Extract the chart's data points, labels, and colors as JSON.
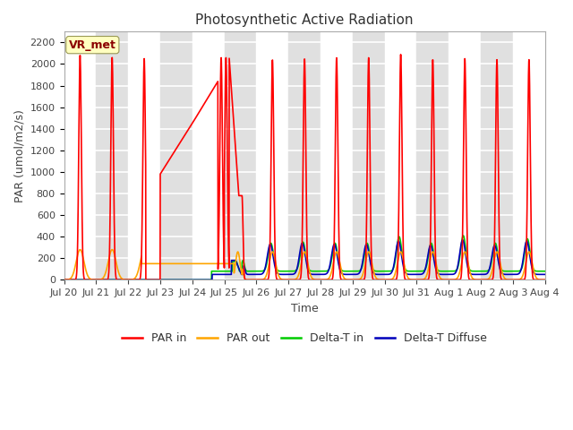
{
  "title": "Photosynthetic Active Radiation",
  "xlabel": "Time",
  "ylabel": "PAR (umol/m2/s)",
  "ylim": [
    0,
    2300
  ],
  "yticks": [
    0,
    200,
    400,
    600,
    800,
    1000,
    1200,
    1400,
    1600,
    1800,
    2000,
    2200
  ],
  "x_labels": [
    "Jul 20",
    "Jul 21",
    "Jul 22",
    "Jul 23",
    "Jul 24",
    "Jul 25",
    "Jul 26",
    "Jul 27",
    "Jul 28",
    "Jul 29",
    "Jul 30",
    "Jul 31",
    "Aug 1",
    "Aug 2",
    "Aug 3",
    "Aug 4"
  ],
  "watermark_text": "VR_met",
  "watermark_color": "#8B0000",
  "watermark_bg": "#FFFFC0",
  "bg_color_light": "#FFFFFF",
  "bg_color_dark": "#E0E0E0",
  "line_colors": {
    "PAR in": "#FF0000",
    "PAR out": "#FFA500",
    "Delta-T in": "#00CC00",
    "Delta-T Diffuse": "#0000BB"
  },
  "line_widths": {
    "PAR in": 1.2,
    "PAR out": 1.2,
    "Delta-T in": 1.2,
    "Delta-T Diffuse": 1.2
  },
  "title_fontsize": 11,
  "label_fontsize": 9,
  "tick_fontsize": 8
}
